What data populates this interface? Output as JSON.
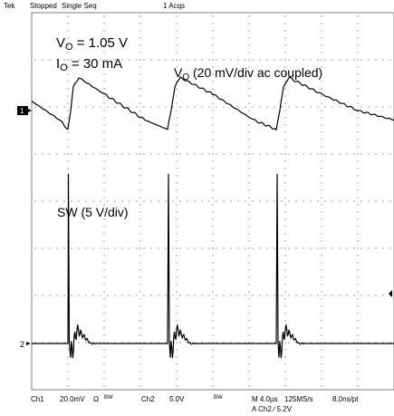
{
  "header": {
    "brand": "Tek",
    "run_state": "Stopped",
    "acq_mode": "Single Seq",
    "acq_count": "1 Acqs"
  },
  "annotations": {
    "vo_value": "V",
    "vo_sub": "O",
    "vo_rest": " = 1.05 V",
    "io_value": "I",
    "io_sub": "O",
    "io_rest": " = 30 mA",
    "ch1_label_main": "V",
    "ch1_label_sub": "O",
    "ch1_label_rest": " (20 mV/div ac coupled)",
    "ch2_label": "SW (5 V/div)"
  },
  "markers": {
    "ch1": "1",
    "ch2": "2"
  },
  "footer": {
    "ch1": "Ch1",
    "ch1_scale": "20.0mV",
    "ch1_coupling": "Ω",
    "ch1_bw": "BW",
    "ch2": "Ch2",
    "ch2_scale": "5.0V",
    "ch2_bw": "BW",
    "timebase": "M 4.0µs",
    "sample_rate": "125MS/s",
    "resolution": "8.0ns/pt",
    "trigger": "A  Ch2  ∕  5.2V"
  },
  "colors": {
    "trace": "#000000",
    "grid_dot": "#444444",
    "background": "#ffffff"
  },
  "chart_data": {
    "type": "line",
    "x_units": "µs",
    "x_per_div": 4.0,
    "x_divisions": 10,
    "xlim": [
      0,
      40
    ],
    "grid": "dotted 10x8",
    "series": [
      {
        "channel": "Ch1",
        "scale_per_div": "20.0mV",
        "description_units": "mV",
        "x": [
          0,
          3.1,
          4.0,
          4.3,
          4.6,
          5.2,
          8,
          12.5,
          15.0,
          15.4,
          15.8,
          16.4,
          20,
          24.5,
          27.0,
          27.4,
          27.8,
          28.4,
          32,
          36,
          40
        ],
        "y": [
          4,
          -4,
          -8,
          0,
          10,
          14,
          7,
          -4,
          -8,
          0,
          10,
          14,
          7,
          -4,
          -8,
          0,
          10,
          14,
          7,
          0,
          -4
        ]
      },
      {
        "channel": "Ch2",
        "scale_per_div": "5.0V",
        "description_units": "V",
        "x": [
          0,
          4.0,
          4.05,
          4.15,
          4.3,
          5.0,
          6.5,
          15.0,
          15.1,
          15.2,
          15.3,
          16.0,
          17.5,
          27.0,
          27.1,
          27.2,
          27.3,
          28.0,
          29.5,
          40
        ],
        "y": [
          0,
          0,
          18,
          0,
          -1.5,
          1.5,
          0,
          0,
          18,
          0,
          -1.5,
          1.5,
          0,
          0,
          18,
          0,
          -1.5,
          1.5,
          0,
          0
        ]
      }
    ]
  }
}
